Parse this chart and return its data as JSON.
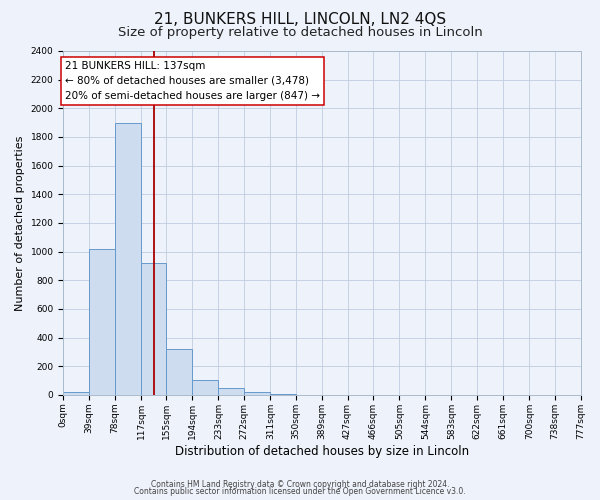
{
  "title": "21, BUNKERS HILL, LINCOLN, LN2 4QS",
  "subtitle": "Size of property relative to detached houses in Lincoln",
  "xlabel": "Distribution of detached houses by size in Lincoln",
  "ylabel": "Number of detached properties",
  "bin_edges": [
    0,
    39,
    78,
    117,
    155,
    194,
    233,
    272,
    311,
    350,
    389,
    427,
    466,
    505,
    544,
    583,
    622,
    661,
    700,
    738,
    777
  ],
  "bin_counts": [
    20,
    1020,
    1900,
    920,
    320,
    105,
    45,
    20,
    5,
    0,
    0,
    0,
    0,
    0,
    0,
    0,
    0,
    0,
    0,
    0
  ],
  "bar_facecolor": "#cddcef",
  "bar_edgecolor": "#6699cc",
  "vline_x": 137,
  "vline_color": "#aa0000",
  "ylim": [
    0,
    2400
  ],
  "yticks": [
    0,
    200,
    400,
    600,
    800,
    1000,
    1200,
    1400,
    1600,
    1800,
    2000,
    2200,
    2400
  ],
  "annotation_title": "21 BUNKERS HILL: 137sqm",
  "annotation_line1": "← 80% of detached houses are smaller (3,478)",
  "annotation_line2": "20% of semi-detached houses are larger (847) →",
  "footer_line1": "Contains HM Land Registry data © Crown copyright and database right 2024.",
  "footer_line2": "Contains public sector information licensed under the Open Government Licence v3.0.",
  "bg_color": "#eef2fa",
  "grid_color": "#c0cce0",
  "title_fontsize": 11,
  "subtitle_fontsize": 9.5,
  "xlabel_fontsize": 8.5,
  "ylabel_fontsize": 8,
  "tick_label_fontsize": 6.5,
  "footer_fontsize": 5.5
}
